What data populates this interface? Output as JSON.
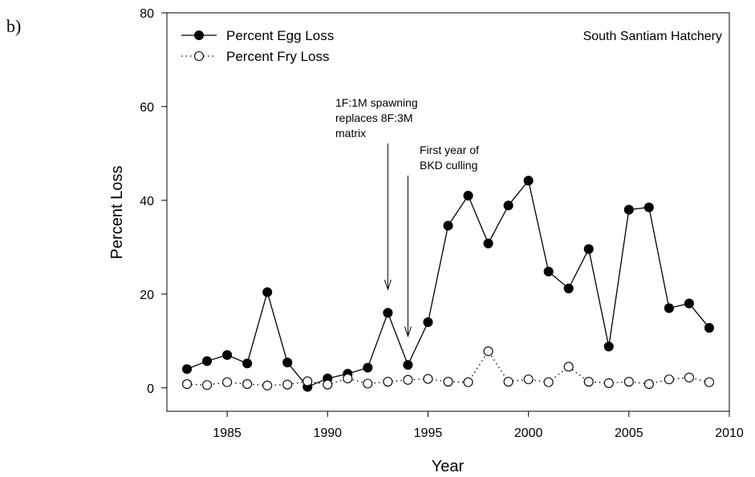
{
  "panel_label": "b)",
  "chart_data": {
    "type": "line",
    "title": "",
    "annotation_site": "South Santiam Hatchery",
    "xlabel": "Year",
    "ylabel": "Percent Loss",
    "xlim": [
      1982,
      2010
    ],
    "ylim": [
      -5,
      80
    ],
    "x_ticks": [
      1985,
      1990,
      1995,
      2000,
      2005,
      2010
    ],
    "y_ticks": [
      0,
      20,
      40,
      60,
      80
    ],
    "grid": false,
    "legend": "top-left",
    "x": [
      1983,
      1984,
      1985,
      1986,
      1987,
      1988,
      1989,
      1990,
      1991,
      1992,
      1993,
      1994,
      1995,
      1996,
      1997,
      1998,
      1999,
      2000,
      2001,
      2002,
      2003,
      2004,
      2005,
      2006,
      2007,
      2008,
      2009
    ],
    "series": [
      {
        "name": "Percent Egg Loss",
        "style": "solid",
        "marker": "filled-circle",
        "values": [
          4.0,
          5.7,
          7.0,
          5.2,
          20.4,
          5.4,
          0.2,
          2.0,
          3.0,
          4.3,
          16.0,
          4.9,
          14.0,
          34.6,
          41.0,
          30.8,
          38.9,
          44.2,
          24.8,
          21.2,
          29.6,
          8.8,
          38.0,
          38.5,
          17.0,
          18.0,
          12.8
        ]
      },
      {
        "name": "Percent Fry Loss",
        "style": "dotted",
        "marker": "open-circle",
        "values": [
          0.8,
          0.6,
          1.2,
          0.8,
          0.5,
          0.7,
          1.4,
          0.7,
          2.0,
          0.9,
          1.3,
          1.7,
          1.9,
          1.3,
          1.2,
          7.8,
          1.3,
          1.8,
          1.2,
          4.5,
          1.3,
          1.0,
          1.3,
          0.8,
          1.8,
          2.2,
          1.2
        ]
      }
    ],
    "annotations": [
      {
        "id": "spawning",
        "lines": [
          "1F:1M spawning",
          "replaces 8F:3M",
          "matrix"
        ],
        "arrow_x": 1993,
        "arrow_y": 21
      },
      {
        "id": "bkd",
        "lines": [
          "First year of",
          "BKD culling"
        ],
        "arrow_x": 1994,
        "arrow_y": 11
      }
    ]
  }
}
